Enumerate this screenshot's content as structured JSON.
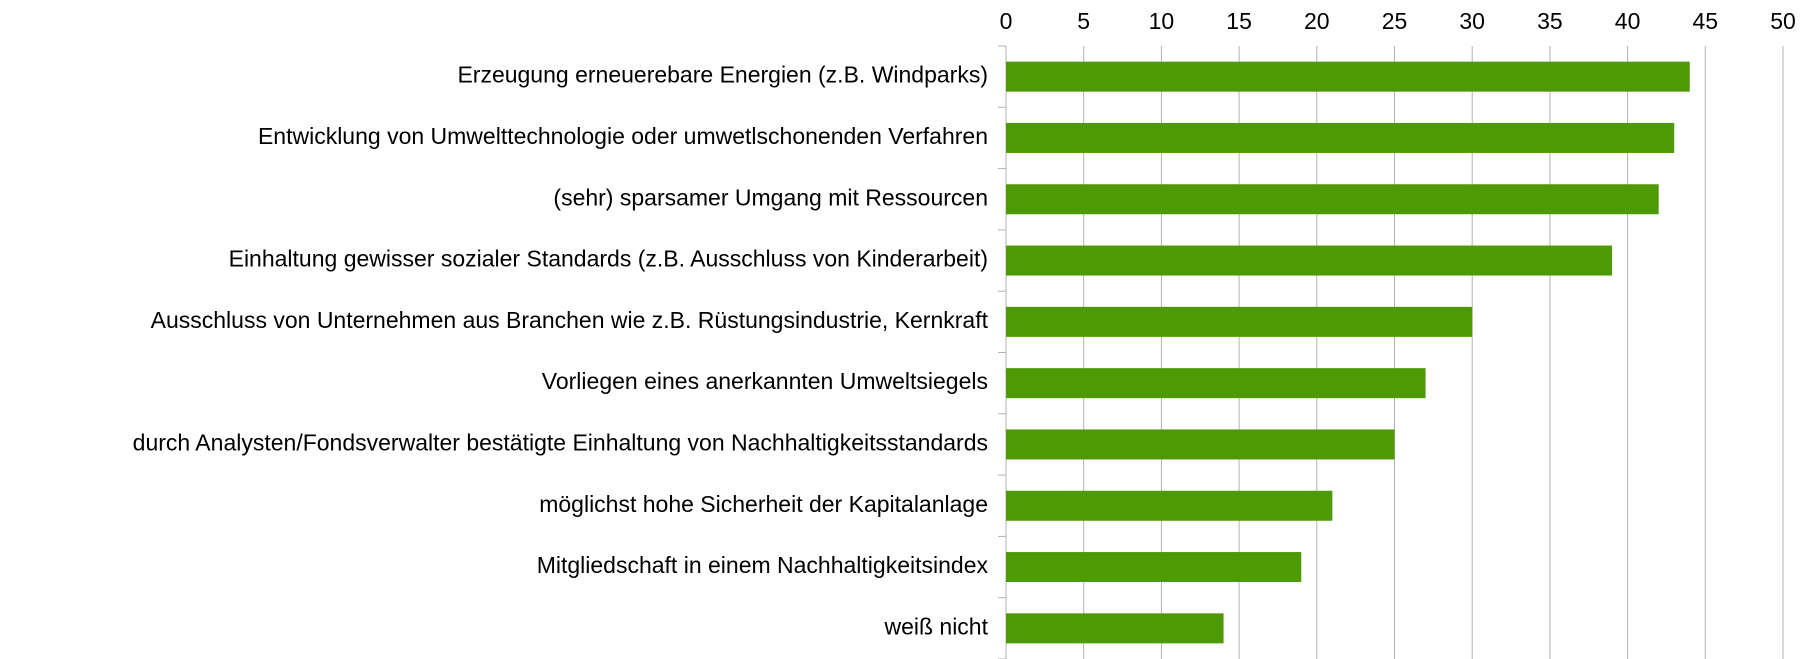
{
  "chart_data": {
    "type": "bar",
    "orientation": "horizontal",
    "categories": [
      "Erzeugung erneuerebare Energien (z.B. Windparks)",
      "Entwicklung von Umwelttechnologie oder umwetlschonenden Verfahren",
      "(sehr) sparsamer Umgang mit Ressourcen",
      "Einhaltung gewisser sozialer Standards (z.B. Ausschluss von Kinderarbeit)",
      "Ausschluss von Unternehmen aus Branchen wie z.B. Rüstungsindustrie, Kernkraft",
      "Vorliegen eines anerkannten Umweltsiegels",
      "durch Analysten/Fondsverwalter bestätigte Einhaltung von Nachhaltigkeitsstandards",
      "möglichst hohe Sicherheit der Kapitalanlage",
      "Mitgliedschaft in einem Nachhaltigkeitsindex",
      "weiß nicht"
    ],
    "values": [
      44,
      43,
      42,
      39,
      30,
      27,
      25,
      21,
      19,
      14
    ],
    "color": "#4e9a06",
    "xlim": [
      0,
      50
    ],
    "xticks": [
      0,
      5,
      10,
      15,
      20,
      25,
      30,
      35,
      40,
      45,
      50
    ],
    "grid": true
  }
}
